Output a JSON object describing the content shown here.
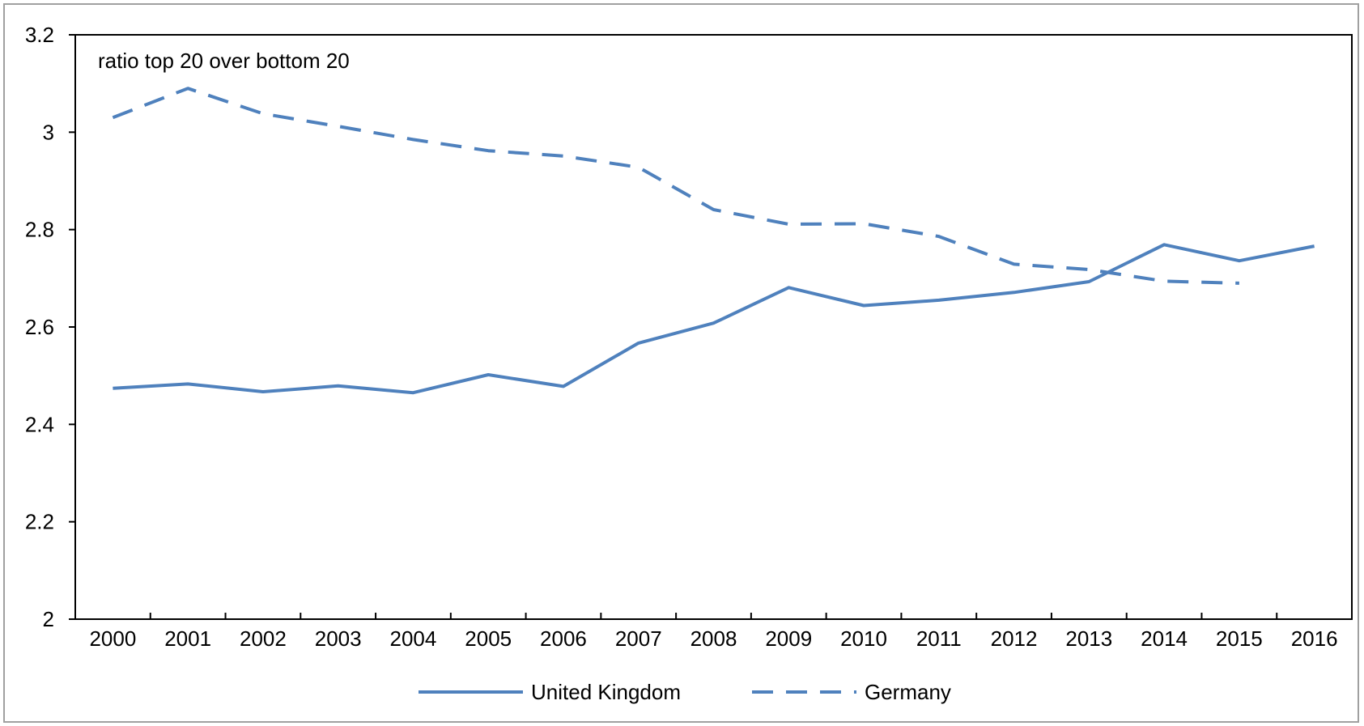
{
  "chart_data": {
    "type": "line",
    "annotation": "ratio top 20 over bottom 20",
    "x": [
      "2000",
      "2001",
      "2002",
      "2003",
      "2004",
      "2005",
      "2006",
      "2007",
      "2008",
      "2009",
      "2010",
      "2011",
      "2012",
      "2013",
      "2014",
      "2015",
      "2016"
    ],
    "ylim": [
      2,
      3.2
    ],
    "yticks": [
      "2",
      "2.2",
      "2.4",
      "2.6",
      "2.8",
      "3",
      "3.2"
    ],
    "grid": false,
    "legend_position": "bottom",
    "series": [
      {
        "name": "United Kingdom",
        "style": "solid",
        "color": "#4f81bd",
        "values": [
          2.474,
          2.483,
          2.467,
          2.479,
          2.465,
          2.502,
          2.478,
          2.567,
          2.608,
          2.681,
          2.644,
          2.655,
          2.671,
          2.693,
          2.769,
          2.736,
          2.766
        ]
      },
      {
        "name": "Germany",
        "style": "dashed",
        "color": "#4f81bd",
        "values": [
          3.03,
          3.09,
          3.038,
          3.012,
          2.985,
          2.962,
          2.951,
          2.928,
          2.841,
          2.811,
          2.812,
          2.786,
          2.729,
          2.718,
          2.694,
          2.69,
          null
        ]
      }
    ]
  }
}
